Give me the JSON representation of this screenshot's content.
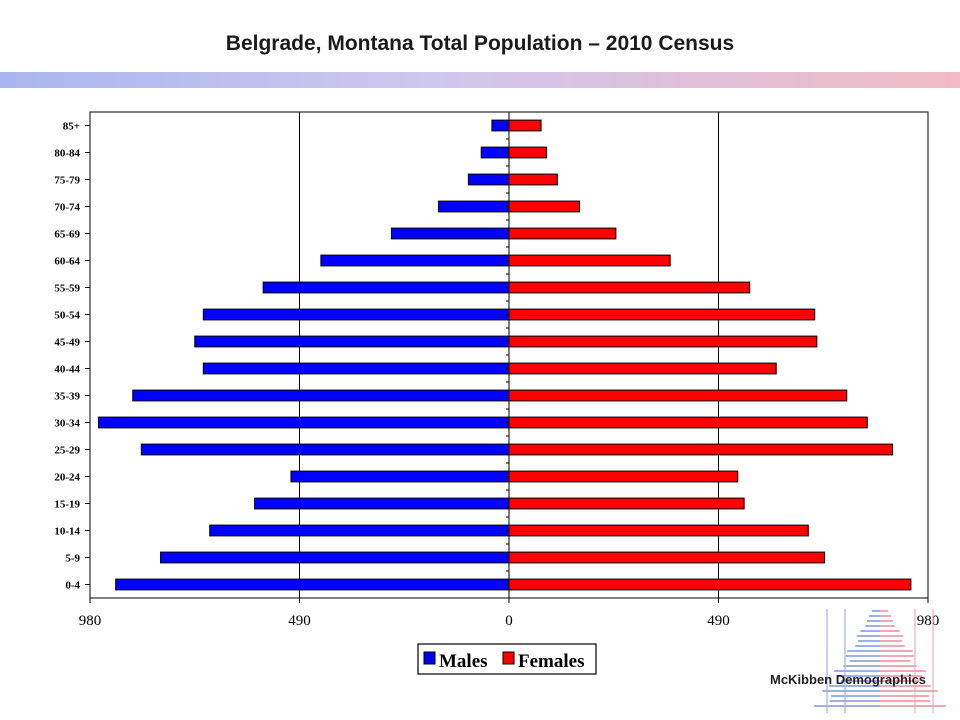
{
  "title": "Belgrade, Montana Total Population – 2010 Census",
  "brand": "McKibben Demographics",
  "colors": {
    "males": "#0000ff",
    "females": "#ff0000"
  },
  "chart_data": {
    "type": "bar",
    "orientation": "horizontal",
    "layout": "population-pyramid",
    "title": "Belgrade, Montana Total Population – 2010 Census",
    "categories": [
      "85+",
      "80-84",
      "75-79",
      "70-74",
      "65-69",
      "60-64",
      "55-59",
      "50-54",
      "45-49",
      "40-44",
      "35-39",
      "30-34",
      "25-29",
      "20-24",
      "15-19",
      "10-14",
      "5-9",
      "0-4"
    ],
    "series": [
      {
        "name": "Males",
        "color": "#0000ff",
        "values": [
          40,
          65,
          95,
          165,
          275,
          440,
          575,
          715,
          735,
          715,
          880,
          960,
          860,
          510,
          595,
          700,
          815,
          920
        ]
      },
      {
        "name": "Females",
        "color": "#ff0000",
        "values": [
          75,
          88,
          113,
          165,
          250,
          377,
          563,
          715,
          720,
          625,
          790,
          838,
          897,
          535,
          550,
          700,
          738,
          940
        ]
      }
    ],
    "xlim": [
      -980,
      980
    ],
    "xticks": [
      -980,
      -490,
      0,
      490,
      980
    ],
    "xtick_labels": [
      "980",
      "490",
      "0",
      "490",
      "980"
    ],
    "grid": "vertical",
    "legend": "bottom-center"
  }
}
